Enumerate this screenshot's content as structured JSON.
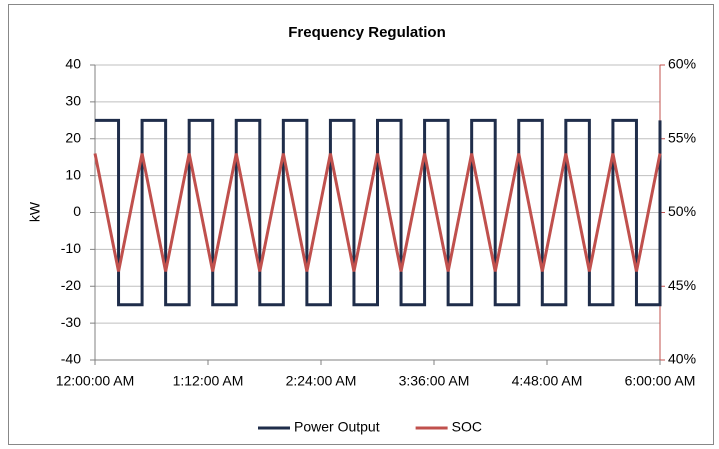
{
  "chart_data": {
    "type": "line",
    "title": "Frequency Regulation",
    "y_label": "kW",
    "xlim": [
      0,
      360
    ],
    "xticks": [
      {
        "value": 0,
        "label": "12:00:00 AM"
      },
      {
        "value": 72,
        "label": "1:12:00 AM"
      },
      {
        "value": 144,
        "label": "2:24:00 AM"
      },
      {
        "value": 216,
        "label": "3:36:00 AM"
      },
      {
        "value": 288,
        "label": "4:48:00 AM"
      },
      {
        "value": 360,
        "label": "6:00:00 AM"
      }
    ],
    "ylim": [
      -40,
      40
    ],
    "yticks": [
      -40,
      -30,
      -20,
      -10,
      0,
      10,
      20,
      30,
      40
    ],
    "y2lim": [
      40,
      60
    ],
    "y2ticks": [
      {
        "value": 40,
        "label": "40%"
      },
      {
        "value": 45,
        "label": "45%"
      },
      {
        "value": 50,
        "label": "50%"
      },
      {
        "value": 55,
        "label": "55%"
      },
      {
        "value": 60,
        "label": "60%"
      }
    ],
    "grid": true,
    "legend": "bottom",
    "series": [
      {
        "name": "Power Output",
        "color": "#1f2d4a",
        "x": [
          0,
          15,
          15,
          30,
          30,
          45,
          45,
          60,
          60,
          75,
          75,
          90,
          90,
          105,
          105,
          120,
          120,
          135,
          135,
          150,
          150,
          165,
          165,
          180,
          180,
          195,
          195,
          210,
          210,
          225,
          225,
          240,
          240,
          255,
          255,
          270,
          270,
          285,
          285,
          300,
          300,
          315,
          315,
          330,
          330,
          345,
          345,
          360,
          360
        ],
        "values": [
          25,
          25,
          -25,
          -25,
          25,
          25,
          -25,
          -25,
          25,
          25,
          -25,
          -25,
          25,
          25,
          -25,
          -25,
          25,
          25,
          -25,
          -25,
          25,
          25,
          -25,
          -25,
          25,
          25,
          -25,
          -25,
          25,
          25,
          -25,
          -25,
          25,
          25,
          -25,
          -25,
          25,
          25,
          -25,
          -25,
          25,
          25,
          -25,
          -25,
          25,
          25,
          -25,
          -25,
          25
        ]
      },
      {
        "name": "SOC",
        "color": "#c0504d",
        "axis": "y2",
        "x": [
          0,
          15,
          30,
          45,
          60,
          75,
          90,
          105,
          120,
          135,
          150,
          165,
          180,
          195,
          210,
          225,
          240,
          255,
          270,
          285,
          300,
          315,
          330,
          345,
          360
        ],
        "values": [
          54,
          46,
          54,
          46,
          54,
          46,
          54,
          46,
          54,
          46,
          54,
          46,
          54,
          46,
          54,
          46,
          54,
          46,
          54,
          46,
          54,
          46,
          54,
          46,
          54
        ]
      }
    ]
  }
}
